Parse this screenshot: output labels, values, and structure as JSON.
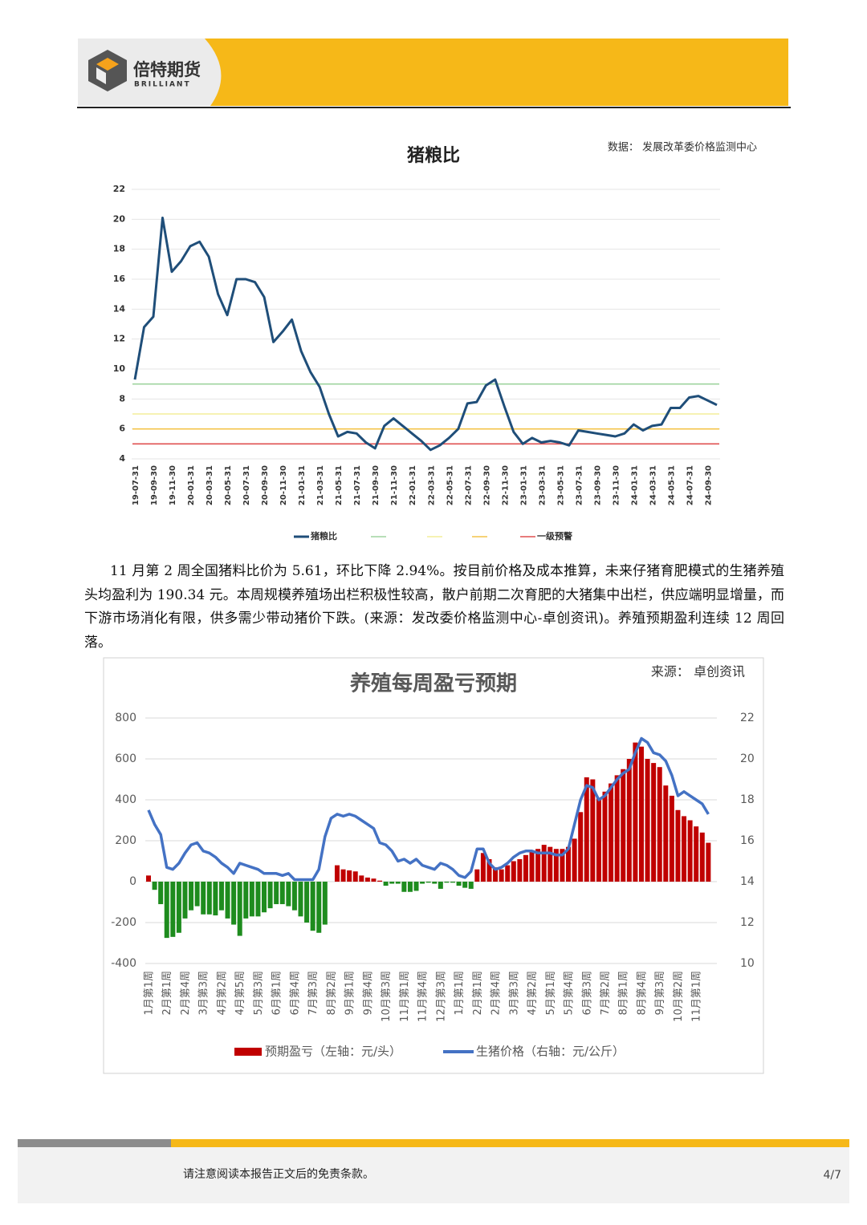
{
  "header": {
    "brand": "倍特期货",
    "brand_en": "BRILLIANT"
  },
  "paragraph": "11 月第 2 周全国猪料比价为 5.61，环比下降 2.94%。按目前价格及成本推算，未来仔猪育肥模式的生猪养殖头均盈利为 190.34 元。本周规模养殖场出栏积极性较高，散户前期二次育肥的大猪集中出栏，供应端明显增量，而下游市场消化有限，供多需少带动猪价下跌。(来源：发改委价格监测中心-卓创资讯)。养殖预期盈利连续 12 周回落。",
  "footer": {
    "disclaimer": "请注意阅读本报告正文后的免责条款。",
    "page": "4/7"
  },
  "chart_data": [
    {
      "type": "line",
      "title": "猪粮比",
      "source": "数据： 发展改革委价格监测中心",
      "categories": [
        "19-07-31",
        null,
        "19-09-30",
        null,
        "19-11-30",
        null,
        "20-01-31",
        null,
        "20-03-31",
        null,
        "20-05-31",
        null,
        "20-07-31",
        null,
        "20-09-30",
        null,
        "20-11-30",
        null,
        "21-01-31",
        null,
        "21-03-31",
        null,
        "21-05-31",
        null,
        "21-07-31",
        null,
        "21-09-30",
        null,
        "21-11-30",
        null,
        "22-01-31",
        null,
        "22-03-31",
        null,
        "22-05-31",
        null,
        "22-07-31",
        null,
        "22-09-30",
        null,
        "22-11-30",
        null,
        "23-01-31",
        null,
        "23-03-31",
        null,
        "23-05-31",
        null,
        "23-07-31",
        null,
        "23-09-30",
        null,
        "23-11-30",
        null,
        "24-01-31",
        null,
        "24-03-31",
        null,
        "24-05-31",
        null,
        "24-07-31",
        null,
        "24-09-30",
        null
      ],
      "series": [
        {
          "name": "猪粮比",
          "color": "#1f4e79",
          "values": [
            9.3,
            12.8,
            13.5,
            20.1,
            16.5,
            17.2,
            18.2,
            18.5,
            17.5,
            15.0,
            13.6,
            16.0,
            16.0,
            15.8,
            14.8,
            11.8,
            12.5,
            13.3,
            11.2,
            9.8,
            8.8,
            7.0,
            5.5,
            5.8,
            5.7,
            5.1,
            4.7,
            6.2,
            6.7,
            6.2,
            5.7,
            5.2,
            4.6,
            4.9,
            5.4,
            6.0,
            7.7,
            7.8,
            8.9,
            9.3,
            7.5,
            5.8,
            5.0,
            5.4,
            5.1,
            5.2,
            5.1,
            4.9,
            5.9,
            5.8,
            5.7,
            5.6,
            5.5,
            5.7,
            6.3,
            5.9,
            6.2,
            6.3,
            7.4,
            7.4,
            8.1,
            8.2,
            7.9,
            7.6
          ]
        }
      ],
      "reference_lines": [
        {
          "value": 9,
          "color": "#9fd49f"
        },
        {
          "value": 7,
          "color": "#f3ee9a"
        },
        {
          "value": 6,
          "color": "#f4c44a"
        },
        {
          "name": "一级预警",
          "value": 5,
          "color": "#e05050"
        }
      ],
      "ylim": [
        4,
        22
      ],
      "yticks": [
        4,
        6,
        8,
        10,
        12,
        14,
        16,
        18,
        20,
        22
      ],
      "grid": true
    },
    {
      "type": "combo",
      "title": "养殖每周盈亏预期",
      "source": "来源：  卓创资讯",
      "categories": [
        "1月第1周",
        null,
        null,
        "2月第1周",
        null,
        null,
        "2月第4周",
        null,
        null,
        "3月第3周",
        null,
        null,
        "4月第2周",
        null,
        null,
        "4月第5周",
        null,
        null,
        "5月第3周",
        null,
        null,
        "6月第1周",
        null,
        null,
        "6月第4周",
        null,
        null,
        "7月第3周",
        null,
        null,
        "8月第2周",
        null,
        null,
        "9月第1周",
        null,
        null,
        "9月第4周",
        null,
        null,
        "10月第3周",
        null,
        null,
        "11月第1周",
        null,
        null,
        "11月第4周",
        null,
        null,
        "12月第3周",
        null,
        null,
        "1月第1周",
        null,
        null,
        "2月第1周",
        null,
        null,
        "2月第4周",
        null,
        null,
        "3月第3周",
        null,
        null,
        "4月第2周",
        null,
        null,
        "5月第1周",
        null,
        null,
        "5月第4周",
        null,
        null,
        "6月第3周",
        null,
        null,
        "7月第2周",
        null,
        null,
        "8月第1周",
        null,
        null,
        "8月第4周",
        null,
        null,
        "9月第3周",
        null,
        null,
        "10月第2周",
        null,
        null,
        "11月第1周",
        null,
        null
      ],
      "series": [
        {
          "name": "预期盈亏（左轴：元/头）",
          "type": "bar",
          "color": "#c00000",
          "values": [
            30,
            -40,
            -110,
            -275,
            -270,
            -250,
            -180,
            -140,
            -120,
            -160,
            -160,
            -165,
            -140,
            -180,
            -210,
            -265,
            -180,
            -170,
            -170,
            -150,
            -130,
            -110,
            -110,
            -120,
            -140,
            -170,
            -200,
            -240,
            -250,
            -210,
            0,
            80,
            60,
            55,
            50,
            30,
            20,
            15,
            5,
            -20,
            -10,
            -10,
            -50,
            -50,
            -45,
            -10,
            -5,
            -10,
            -35,
            -5,
            -5,
            -20,
            -30,
            -35,
            60,
            140,
            110,
            70,
            60,
            80,
            100,
            110,
            130,
            150,
            160,
            180,
            170,
            160,
            160,
            170,
            210,
            340,
            510,
            500,
            410,
            440,
            480,
            520,
            550,
            600,
            680,
            660,
            600,
            580,
            560,
            470,
            420,
            350,
            320,
            300,
            270,
            240,
            190
          ]
        },
        {
          "name": "生猪价格（右轴：元/公斤）",
          "type": "line",
          "axis": "y2",
          "color": "#4472c4",
          "values": [
            17.5,
            16.8,
            16.3,
            14.7,
            14.6,
            14.9,
            15.4,
            15.8,
            15.9,
            15.5,
            15.4,
            15.2,
            14.9,
            14.7,
            14.4,
            14.9,
            14.8,
            14.7,
            14.6,
            14.4,
            14.4,
            14.4,
            14.3,
            14.4,
            14.1,
            14.1,
            14.1,
            14.1,
            14.6,
            16.2,
            17.1,
            17.3,
            17.2,
            17.3,
            17.2,
            17.0,
            16.8,
            16.6,
            15.9,
            15.8,
            15.5,
            15.0,
            15.1,
            14.9,
            15.1,
            14.8,
            14.7,
            14.6,
            14.9,
            14.8,
            14.6,
            14.3,
            14.2,
            14.5,
            15.6,
            15.6,
            14.9,
            14.6,
            14.7,
            14.9,
            15.2,
            15.4,
            15.5,
            15.5,
            15.4,
            15.4,
            15.4,
            15.3,
            15.3,
            15.6,
            16.8,
            18.0,
            18.7,
            18.6,
            18.0,
            18.2,
            18.6,
            19.0,
            19.3,
            19.5,
            20.3,
            21.0,
            20.8,
            20.3,
            20.2,
            19.9,
            19.2,
            18.2,
            18.4,
            18.2,
            18.0,
            17.8,
            17.3
          ]
        }
      ],
      "negative_color": "#1e8c1e",
      "ylim": [
        -400,
        800
      ],
      "yticks": [
        -400,
        -200,
        0,
        200,
        400,
        600,
        800
      ],
      "y2lim": [
        10,
        22
      ],
      "y2ticks": [
        10,
        12,
        14,
        16,
        18,
        20,
        22
      ],
      "grid": true
    }
  ]
}
